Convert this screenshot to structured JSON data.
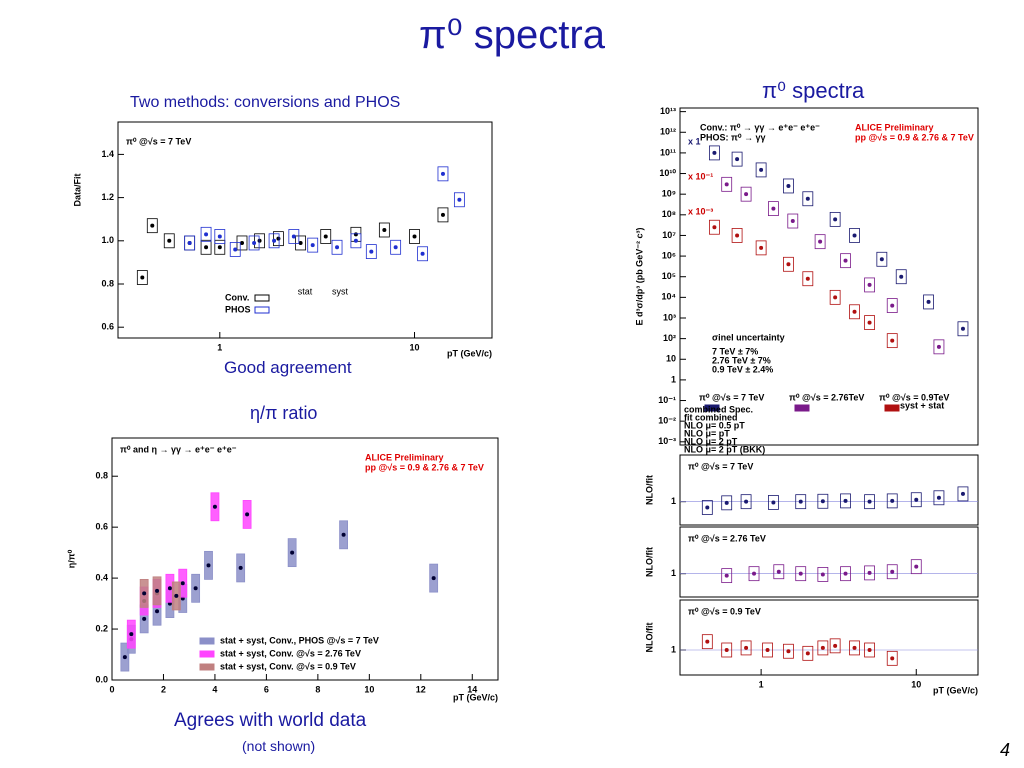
{
  "slide": {
    "title": "π⁰ spectra",
    "left_caption": "Two methods: conversions and PHOS",
    "agreement": "Good agreement",
    "ratio_caption": "η/π ratio",
    "world": "Agrees with world data",
    "not_shown": "(not shown)",
    "right_caption": "π⁰ spectra",
    "page": "4"
  },
  "chart_data": [
    {
      "type": "scatter",
      "title": "π⁰ @√s = 7 TeV",
      "ylabel": "Data/Fit",
      "xlabel": "pT (GeV/c)",
      "xlog": true,
      "xlim": [
        0.3,
        25
      ],
      "xticks": [
        1,
        10
      ],
      "ylim": [
        0.55,
        1.55
      ],
      "yticks": [
        0.6,
        0.8,
        {
          "value": 1,
          "label": "1.0"
        },
        1.2,
        1.4
      ],
      "legend_header": [
        "stat",
        "syst"
      ],
      "series": [
        {
          "name": "Conv.",
          "color": "#000000",
          "x": [
            0.4,
            0.45,
            0.55,
            0.7,
            0.85,
            1.0,
            1.3,
            1.6,
            2.0,
            2.6,
            3.5,
            5,
            7,
            10,
            14
          ],
          "values": [
            0.83,
            1.07,
            1.0,
            0.99,
            0.97,
            0.97,
            0.99,
            1.0,
            1.01,
            0.99,
            1.02,
            1.03,
            1.05,
            1.02,
            1.12
          ]
        },
        {
          "name": "PHOS",
          "color": "#1f2fd0",
          "x": [
            0.7,
            0.85,
            1.0,
            1.2,
            1.5,
            1.9,
            2.4,
            3,
            4,
            5,
            6,
            8,
            11,
            14,
            17
          ],
          "values": [
            0.99,
            1.03,
            1.02,
            0.96,
            0.99,
            1.0,
            1.02,
            0.98,
            0.97,
            1.0,
            0.95,
            0.97,
            0.94,
            1.31,
            1.19
          ]
        }
      ]
    },
    {
      "type": "scatter",
      "title": "π⁰ and η → γγ → e⁺e⁻ e⁺e⁻",
      "ylabel": "η/π⁰",
      "xlabel": "pT (GeV/c)",
      "xlim": [
        0,
        15
      ],
      "xticks": [
        0,
        2,
        4,
        6,
        8,
        10,
        12,
        14
      ],
      "ylim": [
        0,
        0.95
      ],
      "yticks": [
        {
          "value": 0,
          "label": "0.0"
        },
        0.2,
        0.4,
        0.6,
        0.8
      ],
      "annotations": [
        "ALICE Preliminary",
        "pp @√s = 0.9 & 2.76 & 7 TeV"
      ],
      "series": [
        {
          "name": "stat + syst, Conv., PHOS @√s = 7 TeV",
          "color": "#8b8fc8",
          "x": [
            0.5,
            0.75,
            1.25,
            1.75,
            2.25,
            2.75,
            3.25,
            3.75,
            5,
            7,
            9,
            12.5
          ],
          "values": [
            0.09,
            0.16,
            0.24,
            0.27,
            0.3,
            0.32,
            0.36,
            0.45,
            0.44,
            0.5,
            0.57,
            0.4
          ]
        },
        {
          "name": "stat + syst, Conv. @√s = 2.76 TeV",
          "color": "#ff44ff",
          "x": [
            0.75,
            1.25,
            1.75,
            2.25,
            2.75,
            4,
            5.25
          ],
          "values": [
            0.18,
            0.31,
            0.34,
            0.36,
            0.38,
            0.68,
            0.65
          ]
        },
        {
          "name": "stat + syst, Conv. @√s = 0.9 TeV",
          "color": "#c08080",
          "x": [
            1.25,
            1.75,
            2.5
          ],
          "values": [
            0.34,
            0.35,
            0.33
          ]
        }
      ]
    },
    {
      "type": "scatter",
      "ylabel": "E d³σ/dp³ (pb GeV⁻² c³)",
      "xlog": true,
      "ylog": true,
      "xlim": [
        0.3,
        25
      ],
      "ylim": [
        0.0007,
        15000000000000
      ],
      "yticks": [
        {
          "value": 10000000000000.0,
          "label": "10¹³"
        },
        {
          "value": 1000000000000.0,
          "label": "10¹²"
        },
        {
          "value": 100000000000.0,
          "label": "10¹¹"
        },
        {
          "value": 10000000000.0,
          "label": "10¹⁰"
        },
        {
          "value": 1000000000.0,
          "label": "10⁹"
        },
        {
          "value": 100000000.0,
          "label": "10⁸"
        },
        {
          "value": 10000000.0,
          "label": "10⁷"
        },
        {
          "value": 1000000.0,
          "label": "10⁶"
        },
        {
          "value": 100000.0,
          "label": "10⁵"
        },
        {
          "value": 10000.0,
          "label": "10⁴"
        },
        {
          "value": 1000.0,
          "label": "10³"
        },
        {
          "value": 100,
          "label": "10²"
        },
        10,
        1,
        {
          "value": 0.1,
          "label": "10⁻¹"
        },
        {
          "value": 0.01,
          "label": "10⁻²"
        },
        {
          "value": 0.001,
          "label": "10⁻³"
        }
      ],
      "annotations": [
        "ALICE Preliminary",
        "pp @√s = 0.9 & 2.76 & 7 TeV",
        "Conv.: π⁰ → γγ → e⁺e⁻ e⁺e⁻",
        "PHOS: π⁰ → γγ",
        "x 1",
        "x 10⁻¹",
        "x 10⁻³",
        "σinel uncertainty",
        "7 TeV ± 7%",
        "2.76 TeV ± 7%",
        "0.9 TeV ± 2.4%",
        "combined Spec.",
        "fit combined",
        "NLO μ= 0.5 pT",
        "NLO μ= pT",
        "NLO μ= 2 pT",
        "NLO μ= 2 pT (BKK)",
        "syst + stat"
      ],
      "series": [
        {
          "name": "π⁰ @√s = 7 TeV",
          "color": "#1a1a70",
          "x": [
            0.5,
            0.7,
            1,
            1.5,
            2,
            3,
            4,
            6,
            8,
            12,
            20
          ],
          "values": [
            100000000000.0,
            50000000000.0,
            15000000000.0,
            2500000000.0,
            600000000.0,
            60000000.0,
            10000000.0,
            700000.0,
            100000.0,
            6000.0,
            300
          ]
        },
        {
          "name": "π⁰ @√s = 2.76TeV",
          "color": "#7a1a8a",
          "x": [
            0.6,
            0.8,
            1.2,
            1.6,
            2.4,
            3.5,
            5,
            7,
            14
          ],
          "values": [
            3000000000.0,
            1000000000.0,
            200000000.0,
            50000000.0,
            5000000.0,
            600000.0,
            40000.0,
            4000.0,
            40
          ]
        },
        {
          "name": "π⁰ @√s = 0.9TeV",
          "color": "#b01010",
          "x": [
            0.5,
            0.7,
            1,
            1.5,
            2,
            3,
            4,
            5,
            7
          ],
          "values": [
            25000000.0,
            10000000.0,
            2500000.0,
            400000.0,
            80000.0,
            10000.0,
            2000.0,
            600,
            80
          ]
        }
      ]
    },
    {
      "type": "scatter",
      "title": "π⁰ @√s = 7 TeV",
      "ylabel": "NLO/fit",
      "xlog": true,
      "xlim": [
        0.3,
        25
      ],
      "ylim": [
        0.4,
        2.2
      ],
      "yticks": [
        1
      ],
      "series": [
        {
          "name": null,
          "color": "#1a1a70",
          "x": [
            0.45,
            0.6,
            0.8,
            1.2,
            1.8,
            2.5,
            3.5,
            5,
            7,
            10,
            14,
            20
          ],
          "values": [
            0.85,
            0.97,
            1.0,
            0.98,
            1.0,
            1.01,
            1.02,
            1.0,
            1.02,
            1.05,
            1.1,
            1.2
          ]
        }
      ]
    },
    {
      "type": "scatter",
      "title": "π⁰ @√s = 2.76 TeV",
      "ylabel": "NLO/fit",
      "xlog": true,
      "xlim": [
        0.3,
        25
      ],
      "ylim": [
        0.4,
        2.2
      ],
      "yticks": [
        1
      ],
      "series": [
        {
          "name": null,
          "color": "#7a1a8a",
          "x": [
            0.6,
            0.9,
            1.3,
            1.8,
            2.5,
            3.5,
            5,
            7,
            10
          ],
          "values": [
            0.95,
            1.0,
            1.05,
            1.0,
            0.98,
            1.0,
            1.02,
            1.05,
            1.18
          ]
        }
      ]
    },
    {
      "type": "scatter",
      "title": "π⁰ @√s = 0.9 TeV",
      "ylabel": "NLO/fit",
      "xlabel": "pT (GeV/c)",
      "xlog": true,
      "xlim": [
        0.3,
        25
      ],
      "xticks": [
        1,
        10
      ],
      "ylim": [
        0.4,
        2.2
      ],
      "yticks": [
        1
      ],
      "series": [
        {
          "name": null,
          "color": "#b01010",
          "x": [
            0.45,
            0.6,
            0.8,
            1.1,
            1.5,
            2,
            2.5,
            3,
            4,
            5,
            7
          ],
          "values": [
            1.2,
            1.0,
            1.05,
            1.0,
            0.97,
            0.92,
            1.05,
            1.1,
            1.05,
            1.0,
            0.8
          ]
        }
      ]
    }
  ]
}
